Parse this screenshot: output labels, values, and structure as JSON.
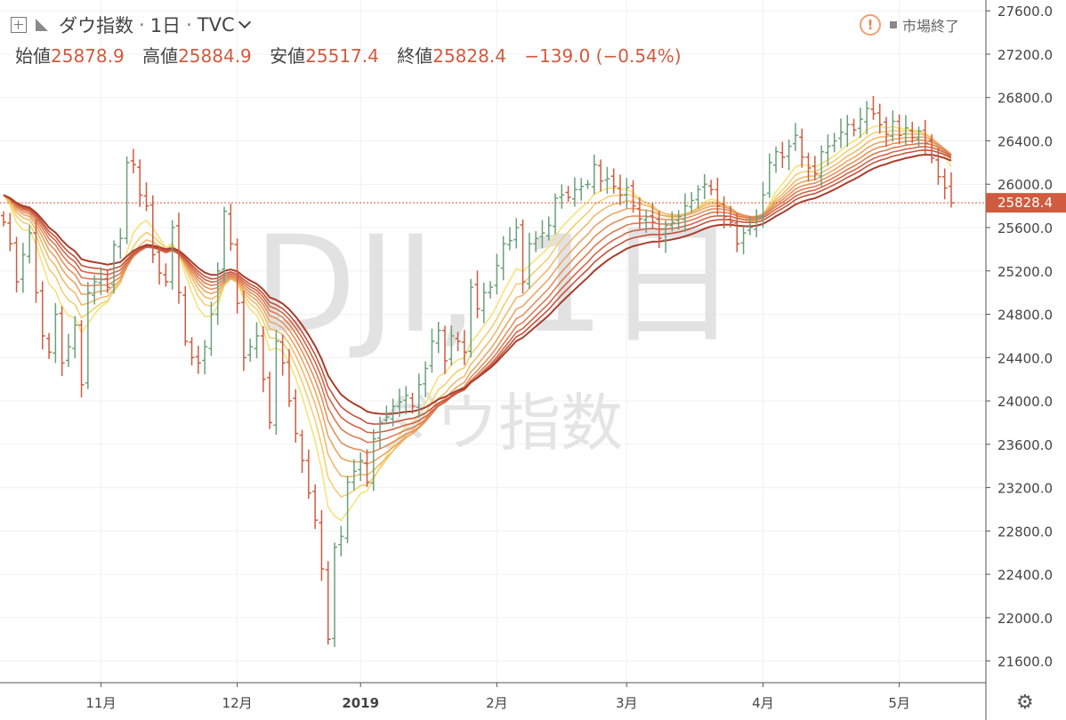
{
  "header": {
    "symbol_name": "ダウ指数",
    "interval": "1日",
    "exchange": "TVC",
    "ohlc": {
      "open_label": "始値",
      "open": "25878.9",
      "high_label": "高値",
      "high": "25884.9",
      "low_label": "安値",
      "low": "25517.4",
      "close_label": "終値",
      "close": "25828.4",
      "change": "−139.0 (−0.54%)"
    },
    "market_status": "市場終了"
  },
  "watermark": {
    "line1": "DJI, 1日",
    "line2": "ダウ指数"
  },
  "colors": {
    "up": "#6aa07a",
    "down": "#d05b3f",
    "price_tag": "#d05b3f",
    "ribbon": [
      "#f6e27a",
      "#f3cf73",
      "#efbb6c",
      "#eaa664",
      "#e4915c",
      "#dc7b52",
      "#d26648",
      "#c4523c",
      "#a93d2c"
    ]
  },
  "chart_data": {
    "type": "ohlc",
    "title": "",
    "y_axis": {
      "min": 21400,
      "max": 27700,
      "ticks": [
        21600,
        22000,
        22400,
        22800,
        23200,
        23600,
        24000,
        24400,
        24800,
        25200,
        25600,
        26000,
        26400,
        26800,
        27200,
        27600
      ]
    },
    "x_axis_labels": [
      {
        "label": "11月",
        "index": 15
      },
      {
        "label": "12月",
        "index": 36
      },
      {
        "label": "2019",
        "index": 55
      },
      {
        "label": "2月",
        "index": 76
      },
      {
        "label": "3月",
        "index": 96
      },
      {
        "label": "4月",
        "index": 117
      },
      {
        "label": "5月",
        "index": 138
      }
    ],
    "last_price": 25828.4,
    "series": [
      {
        "name": "close",
        "values": [
          25650,
          25450,
          25100,
          25350,
          25550,
          25000,
          24600,
          24450,
          24800,
          24350,
          24500,
          24700,
          24150,
          25000,
          25100,
          25120,
          25050,
          25440,
          25500,
          26200,
          26180,
          25900,
          25800,
          25350,
          25180,
          25100,
          25600,
          25000,
          24550,
          24400,
          24350,
          24500,
          24800,
          25200,
          25750,
          25450,
          24900,
          24400,
          24500,
          24600,
          24200,
          23800,
          24550,
          24350,
          24000,
          23700,
          23450,
          23150,
          22900,
          22450,
          21800,
          22650,
          22750,
          23250,
          23350,
          23450,
          23250,
          23650,
          23800,
          23850,
          23950,
          23990,
          24050,
          23950,
          24150,
          24300,
          24550,
          24650,
          24370,
          24600,
          24550,
          24450,
          25050,
          24850,
          25000,
          25050,
          25250,
          25450,
          25480,
          25600,
          25100,
          25450,
          25500,
          25550,
          25620,
          25870,
          25900,
          25880,
          25950,
          25980,
          26000,
          26180,
          26030,
          26050,
          25980,
          25900,
          25970,
          25800,
          25680,
          25700,
          25650,
          25500,
          25620,
          25650,
          25700,
          25800,
          25850,
          25950,
          26000,
          25950,
          25800,
          25700,
          25650,
          25450,
          25550,
          25600,
          25700,
          25900,
          26200,
          26300,
          26250,
          26350,
          26450,
          26250,
          26150,
          26100,
          26300,
          26350,
          26400,
          26480,
          26550,
          26500,
          26600,
          26700,
          26650,
          26550,
          26460,
          26580,
          26450,
          26520,
          26430,
          26490,
          26380,
          26240,
          26070,
          25965,
          25828.4
        ]
      }
    ]
  },
  "ui": {
    "settings_icon": "gear-icon"
  }
}
